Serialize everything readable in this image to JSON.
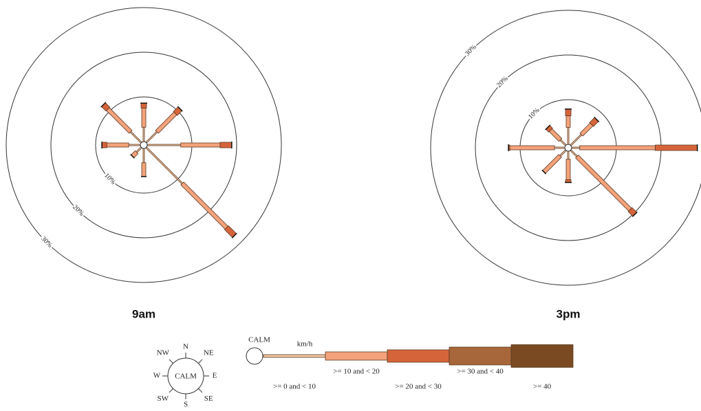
{
  "compass": {
    "labels": [
      "N",
      "NE",
      "E",
      "SE",
      "S",
      "SW",
      "W",
      "NW"
    ],
    "center": "CALM"
  },
  "legend": {
    "calm": "CALM",
    "unit": "km/h"
  },
  "chart_data": [
    {
      "type": "windrose",
      "title": "9am",
      "rlim": [
        0,
        30
      ],
      "rticks": [
        {
          "value": 10,
          "label": "10%"
        },
        {
          "value": 20,
          "label": "20%"
        },
        {
          "value": 30,
          "label": "30%"
        }
      ],
      "series": [
        {
          "name": ">= 0 and < 10",
          "color": "#f2c7a5",
          "values": [
            3.2,
            3.4,
            7.5,
            11.4,
            3.2,
            1.5,
            2.6,
            3.4
          ]
        },
        {
          "name": ">= 10 and < 20",
          "color": "#f4a27b",
          "values": [
            4.3,
            5.8,
            8.8,
            14,
            3.1,
            1.3,
            4.9,
            7.2
          ]
        },
        {
          "name": ">= 20 and < 30",
          "color": "#d6643a",
          "values": [
            1.1,
            1.5,
            2.6,
            2.5,
            0,
            0,
            1.1,
            1.4
          ]
        },
        {
          "name": ">= 30 and < 40",
          "color": "#a8673a",
          "values": [
            0,
            0,
            0,
            0,
            0,
            0,
            0,
            0
          ]
        },
        {
          "name": ">= 40",
          "color": "#7a4a22",
          "values": [
            0,
            0,
            0,
            0,
            0,
            0,
            0,
            0
          ]
        }
      ]
    },
    {
      "type": "windrose",
      "title": "3pm",
      "rlim": [
        0,
        30
      ],
      "rticks": [
        {
          "value": 10,
          "label": "10%"
        },
        {
          "value": 20,
          "label": "20%"
        },
        {
          "value": 30,
          "label": "30%"
        }
      ],
      "series": [
        {
          "color": "#f2c7a5",
          "values": [
            3.8,
            3.4,
            1.8,
            2,
            1.8,
            1.8,
            2.3,
            1.7
          ]
        },
        {
          "color": "#f4a27b",
          "values": [
            2.6,
            3.2,
            16.9,
            16.8,
            4.6,
            5.1,
            10,
            3.1
          ]
        },
        {
          "color": "#d6643a",
          "values": [
            1.5,
            1.6,
            9.4,
            1.5,
            0.6,
            0,
            0.3,
            0.9
          ]
        },
        {
          "color": "#a8673a",
          "values": [
            0,
            0,
            0,
            0,
            0,
            0,
            0,
            0
          ]
        },
        {
          "color": "#7a4a22",
          "values": [
            0,
            0,
            0,
            0,
            0,
            0,
            0,
            0
          ]
        }
      ]
    }
  ]
}
